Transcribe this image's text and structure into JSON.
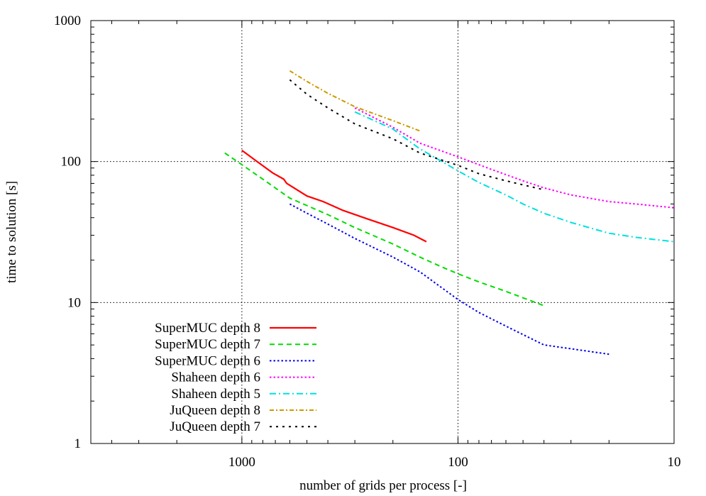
{
  "chart_data": {
    "type": "line",
    "xlabel": "number of grids per process [-]",
    "ylabel": "time to solution [s]",
    "x_scale": "log",
    "y_scale": "log",
    "x_reversed": true,
    "xlim": [
      5000,
      10
    ],
    "ylim": [
      1,
      1000
    ],
    "x_ticks": [
      1000,
      100,
      10
    ],
    "x_tick_labels": [
      "1000",
      "100",
      "10"
    ],
    "y_ticks": [
      1,
      10,
      100,
      1000
    ],
    "y_tick_labels": [
      "1",
      "10",
      "100",
      "1000"
    ],
    "grid": "dotted, major decades only",
    "legend_position": "bottom-left",
    "series": [
      {
        "name": "SuperMUC depth 8",
        "color": "#ff0000",
        "dash": "solid",
        "x": [
          1000,
          850,
          720,
          640,
          620,
          500,
          420,
          340,
          260,
          200,
          160,
          140
        ],
        "y": [
          120,
          100,
          83,
          75,
          70,
          57,
          52,
          45,
          39,
          34,
          30,
          27
        ]
      },
      {
        "name": "SuperMUC depth 7",
        "color": "#00dd00",
        "dash": "dashed",
        "x": [
          1200,
          1000,
          800,
          600,
          400,
          300,
          200,
          150,
          120,
          100,
          80,
          60,
          40
        ],
        "y": [
          115,
          95,
          75,
          55,
          42,
          34,
          26,
          21,
          18,
          16,
          14,
          12,
          9.5
        ]
      },
      {
        "name": "SuperMUC depth 6",
        "color": "#0000ee",
        "dash": "dotted",
        "x": [
          600,
          500,
          400,
          300,
          200,
          150,
          100,
          80,
          60,
          40,
          30,
          20
        ],
        "y": [
          50,
          43,
          36,
          28.5,
          21,
          16.5,
          10.5,
          8.5,
          6.8,
          5,
          4.7,
          4.3
        ]
      },
      {
        "name": "Shaheen depth 6",
        "color": "#ff00ff",
        "dash": "dotted",
        "x": [
          300,
          200,
          150,
          100,
          70,
          50,
          40,
          30,
          20,
          15,
          10
        ],
        "y": [
          240,
          175,
          135,
          108,
          88,
          73,
          65,
          58,
          52,
          50,
          47
        ]
      },
      {
        "name": "Shaheen depth 5",
        "color": "#00e0e0",
        "dash": "dashdot",
        "x": [
          300,
          200,
          150,
          100,
          80,
          60,
          50,
          40,
          30,
          20,
          15,
          10
        ],
        "y": [
          225,
          170,
          123,
          86,
          71,
          58,
          50,
          43,
          37,
          31,
          29,
          27
        ]
      },
      {
        "name": "JuQueen depth 8",
        "color": "#cc9900",
        "dash": "dashdot2",
        "x": [
          600,
          500,
          400,
          300,
          200,
          150
        ],
        "y": [
          440,
          370,
          305,
          245,
          195,
          165
        ]
      },
      {
        "name": "JuQueen depth 7",
        "color": "#000000",
        "dash": "dotted-sparse",
        "x": [
          600,
          500,
          400,
          300,
          200,
          150,
          120,
          100,
          80,
          60,
          40
        ],
        "y": [
          380,
          300,
          240,
          185,
          145,
          115,
          103,
          94,
          82,
          73,
          63
        ]
      }
    ]
  }
}
